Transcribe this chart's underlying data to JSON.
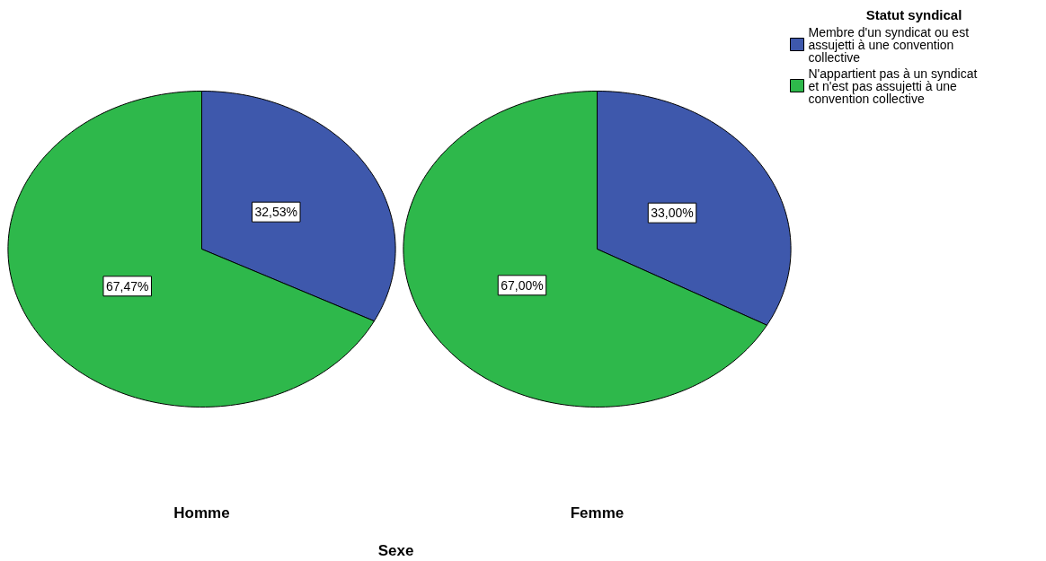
{
  "chart_data": {
    "type": "pie",
    "categories": [
      "Membre d'un syndicat ou est assujetti à une convention collective",
      "N'appartient pas à un syndicat et n'est pas assujetti à une convention collective"
    ],
    "colors": [
      "#3e58ac",
      "#2eb84b"
    ],
    "series": [
      {
        "name": "Homme",
        "values": [
          32.53,
          67.47
        ],
        "value_labels": [
          "32,53%",
          "67,47%"
        ]
      },
      {
        "name": "Femme",
        "values": [
          33.0,
          67.0
        ],
        "value_labels": [
          "33,00%",
          "67,00%"
        ]
      }
    ],
    "xlabel": "Sexe",
    "legend": "top right",
    "legend_title": "Statut syndical"
  }
}
